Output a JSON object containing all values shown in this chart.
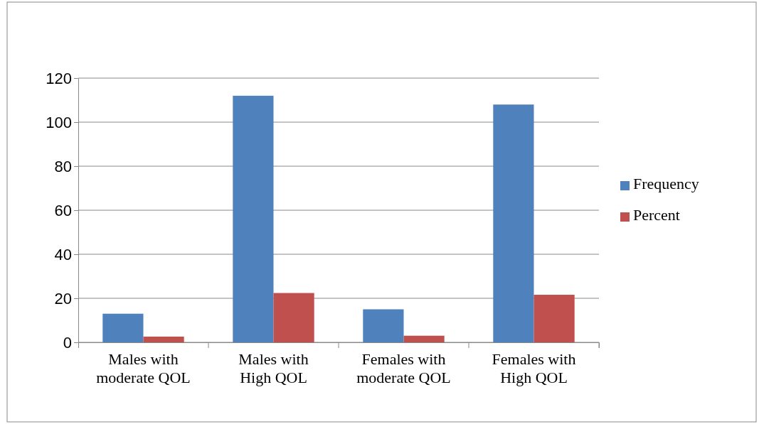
{
  "chart_data": {
    "type": "bar",
    "categories": [
      "Males with moderate QOL",
      "Males with High QOL",
      "Females with moderate QOL",
      "Females with High QOL"
    ],
    "series": [
      {
        "name": "Frequency",
        "color": "#4f81bd",
        "values": [
          13,
          112,
          15,
          108
        ]
      },
      {
        "name": "Percent",
        "color": "#c0504d",
        "values": [
          2.6,
          22.4,
          3,
          21.6
        ]
      }
    ],
    "ylim": [
      0,
      120
    ],
    "yticks": [
      0,
      20,
      40,
      60,
      80,
      100,
      120
    ],
    "grid": "y",
    "legend": "right"
  }
}
